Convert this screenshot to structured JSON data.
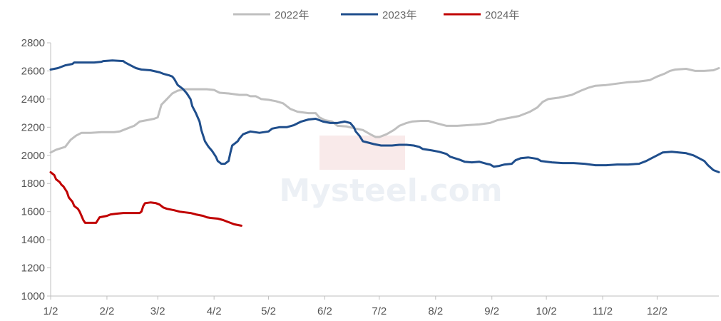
{
  "chart_data": {
    "type": "line",
    "title": "",
    "xlabel": "",
    "ylabel": "",
    "ylim": [
      1000,
      2800
    ],
    "yticks": [
      1000,
      1200,
      1400,
      1600,
      1800,
      2000,
      2200,
      2400,
      2600,
      2800
    ],
    "x_tick_labels": [
      "1/2",
      "2/2",
      "3/2",
      "4/2",
      "5/2",
      "6/2",
      "7/2",
      "8/2",
      "9/2",
      "10/2",
      "11/2",
      "12/2"
    ],
    "x_tick_days": [
      0,
      31,
      59,
      90,
      120,
      151,
      181,
      212,
      243,
      273,
      304,
      334
    ],
    "x_max_day": 368,
    "grid": false,
    "legend_position": "top-center",
    "watermark": "Mysteel.com",
    "series": [
      {
        "name": "2022年",
        "color": "#bfbfbf",
        "points": [
          [
            0,
            2020
          ],
          [
            3,
            2040
          ],
          [
            8,
            2060
          ],
          [
            11,
            2110
          ],
          [
            14,
            2140
          ],
          [
            17,
            2160
          ],
          [
            22,
            2160
          ],
          [
            28,
            2165
          ],
          [
            35,
            2165
          ],
          [
            38,
            2170
          ],
          [
            42,
            2190
          ],
          [
            46,
            2210
          ],
          [
            49,
            2240
          ],
          [
            53,
            2250
          ],
          [
            57,
            2260
          ],
          [
            59,
            2270
          ],
          [
            61,
            2360
          ],
          [
            64,
            2400
          ],
          [
            67,
            2440
          ],
          [
            70,
            2460
          ],
          [
            74,
            2470
          ],
          [
            80,
            2470
          ],
          [
            86,
            2470
          ],
          [
            90,
            2465
          ],
          [
            93,
            2445
          ],
          [
            98,
            2440
          ],
          [
            104,
            2430
          ],
          [
            108,
            2430
          ],
          [
            110,
            2420
          ],
          [
            113,
            2420
          ],
          [
            116,
            2400
          ],
          [
            120,
            2395
          ],
          [
            124,
            2385
          ],
          [
            128,
            2370
          ],
          [
            132,
            2330
          ],
          [
            136,
            2310
          ],
          [
            142,
            2300
          ],
          [
            146,
            2300
          ],
          [
            148,
            2270
          ],
          [
            151,
            2250
          ],
          [
            155,
            2240
          ],
          [
            158,
            2210
          ],
          [
            163,
            2205
          ],
          [
            168,
            2190
          ],
          [
            172,
            2180
          ],
          [
            176,
            2150
          ],
          [
            179,
            2130
          ],
          [
            181,
            2130
          ],
          [
            185,
            2150
          ],
          [
            189,
            2180
          ],
          [
            192,
            2210
          ],
          [
            196,
            2230
          ],
          [
            199,
            2240
          ],
          [
            204,
            2245
          ],
          [
            208,
            2245
          ],
          [
            212,
            2230
          ],
          [
            218,
            2210
          ],
          [
            224,
            2210
          ],
          [
            230,
            2215
          ],
          [
            236,
            2220
          ],
          [
            242,
            2230
          ],
          [
            246,
            2250
          ],
          [
            252,
            2265
          ],
          [
            258,
            2280
          ],
          [
            264,
            2310
          ],
          [
            268,
            2340
          ],
          [
            271,
            2380
          ],
          [
            274,
            2400
          ],
          [
            280,
            2410
          ],
          [
            287,
            2430
          ],
          [
            292,
            2460
          ],
          [
            296,
            2480
          ],
          [
            300,
            2495
          ],
          [
            306,
            2500
          ],
          [
            312,
            2510
          ],
          [
            318,
            2520
          ],
          [
            324,
            2525
          ],
          [
            330,
            2535
          ],
          [
            334,
            2560
          ],
          [
            338,
            2580
          ],
          [
            341,
            2600
          ],
          [
            344,
            2610
          ],
          [
            350,
            2615
          ],
          [
            355,
            2600
          ],
          [
            360,
            2600
          ],
          [
            365,
            2605
          ],
          [
            368,
            2620
          ]
        ]
      },
      {
        "name": "2023年",
        "color": "#1f4e8c",
        "points": [
          [
            0,
            2610
          ],
          [
            4,
            2620
          ],
          [
            8,
            2640
          ],
          [
            12,
            2650
          ],
          [
            13,
            2660
          ],
          [
            18,
            2660
          ],
          [
            24,
            2660
          ],
          [
            28,
            2665
          ],
          [
            29,
            2670
          ],
          [
            34,
            2675
          ],
          [
            40,
            2670
          ],
          [
            41,
            2660
          ],
          [
            44,
            2640
          ],
          [
            47,
            2620
          ],
          [
            50,
            2610
          ],
          [
            55,
            2605
          ],
          [
            60,
            2590
          ],
          [
            62,
            2580
          ],
          [
            65,
            2570
          ],
          [
            67,
            2560
          ],
          [
            68,
            2545
          ],
          [
            70,
            2500
          ],
          [
            73,
            2470
          ],
          [
            75,
            2440
          ],
          [
            77,
            2400
          ],
          [
            78,
            2350
          ],
          [
            80,
            2300
          ],
          [
            82,
            2240
          ],
          [
            83,
            2180
          ],
          [
            85,
            2100
          ],
          [
            87,
            2060
          ],
          [
            89,
            2030
          ],
          [
            91,
            1990
          ],
          [
            92,
            1960
          ],
          [
            94,
            1940
          ],
          [
            96,
            1940
          ],
          [
            98,
            1960
          ],
          [
            99,
            2020
          ],
          [
            100,
            2070
          ],
          [
            103,
            2100
          ],
          [
            104,
            2120
          ],
          [
            106,
            2150
          ],
          [
            110,
            2170
          ],
          [
            115,
            2160
          ],
          [
            120,
            2170
          ],
          [
            122,
            2190
          ],
          [
            126,
            2200
          ],
          [
            130,
            2200
          ],
          [
            134,
            2215
          ],
          [
            138,
            2240
          ],
          [
            142,
            2255
          ],
          [
            146,
            2260
          ],
          [
            150,
            2240
          ],
          [
            154,
            2230
          ],
          [
            158,
            2230
          ],
          [
            162,
            2240
          ],
          [
            165,
            2230
          ],
          [
            167,
            2200
          ],
          [
            168,
            2170
          ],
          [
            170,
            2140
          ],
          [
            172,
            2100
          ],
          [
            175,
            2090
          ],
          [
            178,
            2080
          ],
          [
            182,
            2070
          ],
          [
            188,
            2070
          ],
          [
            192,
            2075
          ],
          [
            196,
            2075
          ],
          [
            200,
            2070
          ],
          [
            203,
            2060
          ],
          [
            205,
            2045
          ],
          [
            210,
            2035
          ],
          [
            214,
            2025
          ],
          [
            218,
            2010
          ],
          [
            220,
            1990
          ],
          [
            225,
            1970
          ],
          [
            228,
            1955
          ],
          [
            232,
            1950
          ],
          [
            236,
            1955
          ],
          [
            240,
            1940
          ],
          [
            242,
            1935
          ],
          [
            244,
            1920
          ],
          [
            247,
            1925
          ],
          [
            250,
            1935
          ],
          [
            254,
            1940
          ],
          [
            256,
            1965
          ],
          [
            259,
            1980
          ],
          [
            263,
            1985
          ],
          [
            268,
            1975
          ],
          [
            270,
            1960
          ],
          [
            276,
            1950
          ],
          [
            282,
            1945
          ],
          [
            288,
            1945
          ],
          [
            294,
            1940
          ],
          [
            300,
            1930
          ],
          [
            306,
            1930
          ],
          [
            312,
            1935
          ],
          [
            318,
            1935
          ],
          [
            324,
            1940
          ],
          [
            328,
            1960
          ],
          [
            331,
            1980
          ],
          [
            334,
            2000
          ],
          [
            337,
            2020
          ],
          [
            342,
            2025
          ],
          [
            346,
            2020
          ],
          [
            350,
            2015
          ],
          [
            354,
            2000
          ],
          [
            357,
            1980
          ],
          [
            360,
            1960
          ],
          [
            362,
            1930
          ],
          [
            365,
            1895
          ],
          [
            368,
            1880
          ]
        ]
      },
      {
        "name": "2024年",
        "color": "#c00000",
        "points": [
          [
            0,
            1880
          ],
          [
            2,
            1860
          ],
          [
            3,
            1830
          ],
          [
            5,
            1810
          ],
          [
            6,
            1790
          ],
          [
            7,
            1780
          ],
          [
            9,
            1740
          ],
          [
            10,
            1700
          ],
          [
            12,
            1670
          ],
          [
            13,
            1640
          ],
          [
            15,
            1620
          ],
          [
            16,
            1600
          ],
          [
            17,
            1570
          ],
          [
            18,
            1540
          ],
          [
            19,
            1520
          ],
          [
            22,
            1520
          ],
          [
            25,
            1520
          ],
          [
            26,
            1540
          ],
          [
            27,
            1560
          ],
          [
            29,
            1565
          ],
          [
            31,
            1570
          ],
          [
            33,
            1580
          ],
          [
            36,
            1585
          ],
          [
            40,
            1590
          ],
          [
            44,
            1590
          ],
          [
            48,
            1590
          ],
          [
            49,
            1590
          ],
          [
            50,
            1600
          ],
          [
            51,
            1640
          ],
          [
            52,
            1660
          ],
          [
            55,
            1665
          ],
          [
            58,
            1660
          ],
          [
            60,
            1650
          ],
          [
            62,
            1630
          ],
          [
            64,
            1620
          ],
          [
            66,
            1615
          ],
          [
            68,
            1610
          ],
          [
            71,
            1600
          ],
          [
            74,
            1595
          ],
          [
            77,
            1590
          ],
          [
            80,
            1580
          ],
          [
            84,
            1570
          ],
          [
            86,
            1560
          ],
          [
            88,
            1555
          ],
          [
            92,
            1550
          ],
          [
            95,
            1540
          ],
          [
            97,
            1530
          ],
          [
            99,
            1520
          ],
          [
            101,
            1510
          ],
          [
            103,
            1505
          ],
          [
            105,
            1500
          ]
        ]
      }
    ]
  }
}
